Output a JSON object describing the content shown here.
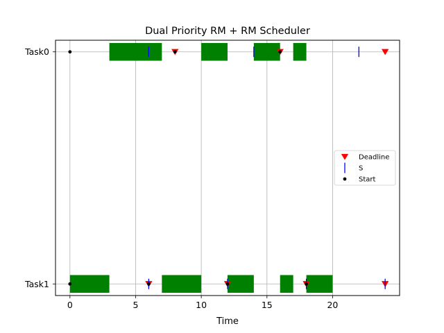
{
  "chart_data": {
    "type": "gantt",
    "title": "Dual Priority RM + RM Scheduler",
    "xlabel": "Time",
    "ylabel": "",
    "xlim": [
      -1.1,
      25.1
    ],
    "ylim": [
      1.05,
      -0.05
    ],
    "grid": true,
    "xticks": [
      0,
      5,
      10,
      15,
      20
    ],
    "tasks": [
      "Task0",
      "Task1"
    ],
    "executions": [
      {
        "task": "Task0",
        "start": 3,
        "end": 7
      },
      {
        "task": "Task0",
        "start": 10,
        "end": 12
      },
      {
        "task": "Task0",
        "start": 14,
        "end": 16
      },
      {
        "task": "Task0",
        "start": 17,
        "end": 18
      },
      {
        "task": "Task1",
        "start": 0,
        "end": 3
      },
      {
        "task": "Task1",
        "start": 7,
        "end": 10
      },
      {
        "task": "Task1",
        "start": 12,
        "end": 14
      },
      {
        "task": "Task1",
        "start": 16,
        "end": 17
      },
      {
        "task": "Task1",
        "start": 18,
        "end": 20
      }
    ],
    "events": {
      "deadline": [
        {
          "task": "Task0",
          "t": 8
        },
        {
          "task": "Task0",
          "t": 16
        },
        {
          "task": "Task0",
          "t": 24
        },
        {
          "task": "Task1",
          "t": 6
        },
        {
          "task": "Task1",
          "t": 12
        },
        {
          "task": "Task1",
          "t": 18
        },
        {
          "task": "Task1",
          "t": 24
        }
      ],
      "s": [
        {
          "task": "Task0",
          "t": 6
        },
        {
          "task": "Task0",
          "t": 14
        },
        {
          "task": "Task0",
          "t": 22
        },
        {
          "task": "Task1",
          "t": 6
        },
        {
          "task": "Task1",
          "t": 12
        },
        {
          "task": "Task1",
          "t": 18
        },
        {
          "task": "Task1",
          "t": 24
        }
      ],
      "start": [
        {
          "task": "Task0",
          "t": 0
        },
        {
          "task": "Task0",
          "t": 8
        },
        {
          "task": "Task0",
          "t": 16
        },
        {
          "task": "Task1",
          "t": 0
        },
        {
          "task": "Task1",
          "t": 6
        },
        {
          "task": "Task1",
          "t": 12
        },
        {
          "task": "Task1",
          "t": 18
        }
      ]
    },
    "legend": {
      "placement": "center-right",
      "entries": [
        {
          "key": "deadline",
          "label": "Deadline"
        },
        {
          "key": "s",
          "label": "S"
        },
        {
          "key": "start",
          "label": "Start"
        }
      ]
    },
    "colors": {
      "execution": "#008000",
      "deadline": "#ff0000",
      "s": "#0000ff",
      "start": "#000000",
      "grid": "#b0b0b0"
    }
  }
}
